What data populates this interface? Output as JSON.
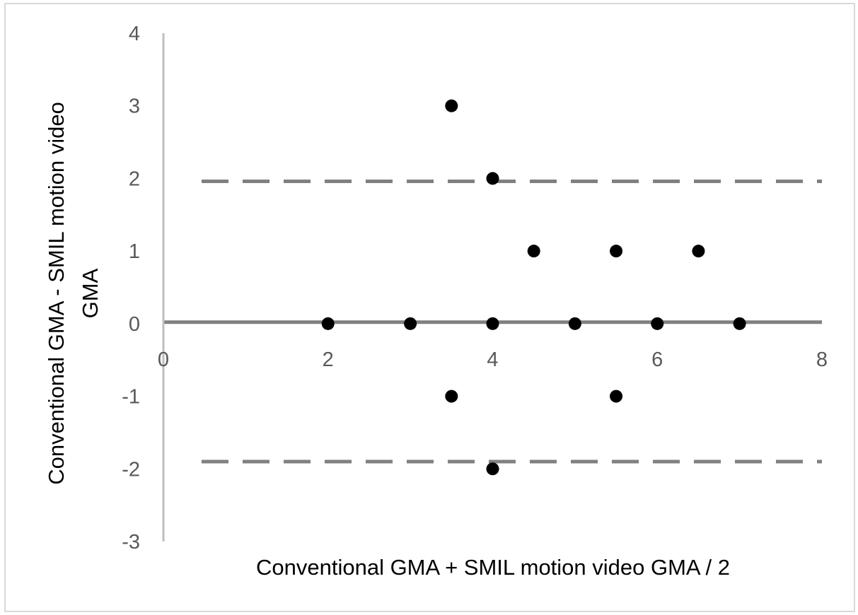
{
  "chart_data": {
    "type": "scatter",
    "title": "",
    "xlabel": "Conventional GMA + SMIL motion video GMA / 2",
    "ylabel_lines": [
      "Conventional GMA - SMIL motion video",
      "GMA"
    ],
    "xlim": [
      0,
      8
    ],
    "ylim": [
      -3,
      4
    ],
    "x_ticks": [
      0,
      2,
      4,
      6,
      8
    ],
    "y_ticks": [
      4,
      3,
      2,
      1,
      0,
      -1,
      -2,
      -3
    ],
    "grid": false,
    "legend": "none",
    "points": [
      {
        "x": 2,
        "y": 0
      },
      {
        "x": 3,
        "y": 0
      },
      {
        "x": 4,
        "y": 0
      },
      {
        "x": 5,
        "y": 0
      },
      {
        "x": 6,
        "y": 0
      },
      {
        "x": 7,
        "y": 0
      },
      {
        "x": 3.5,
        "y": 3
      },
      {
        "x": 4,
        "y": 2
      },
      {
        "x": 4.5,
        "y": 1
      },
      {
        "x": 5.5,
        "y": 1
      },
      {
        "x": 6.5,
        "y": 1
      },
      {
        "x": 3.5,
        "y": -1
      },
      {
        "x": 5.5,
        "y": -1
      },
      {
        "x": 4,
        "y": -2
      }
    ],
    "reference_lines": [
      {
        "role": "mean",
        "y": 0.02,
        "style": "solid"
      },
      {
        "role": "upper-limit",
        "y": 1.96,
        "style": "dashed"
      },
      {
        "role": "lower-limit",
        "y": -1.9,
        "style": "dashed"
      }
    ],
    "colors": {
      "points": "#000000",
      "lines": "#808080",
      "axis": "#bfbfbf",
      "tick_text": "#595959"
    }
  }
}
